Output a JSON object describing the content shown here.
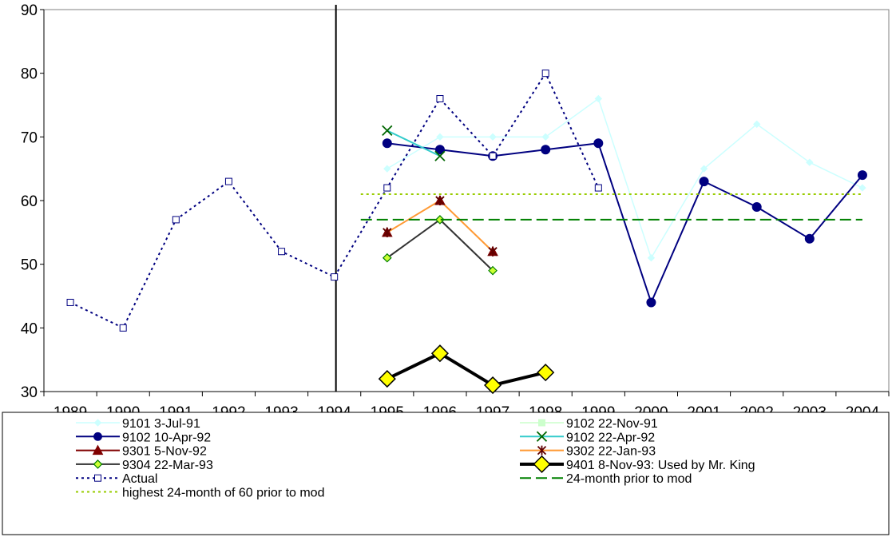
{
  "chart_data": {
    "type": "line",
    "title": "",
    "xlabel": "",
    "ylabel": "",
    "categories": [
      "1989",
      "1990",
      "1991",
      "1992",
      "1993",
      "1994",
      "1995",
      "1996",
      "1997",
      "1998",
      "1999",
      "2000",
      "2001",
      "2002",
      "2003",
      "2004"
    ],
    "ylim": [
      30,
      90
    ],
    "yticks": [
      30,
      40,
      50,
      60,
      70,
      80,
      90
    ],
    "grid": false,
    "legend_position": "bottom",
    "vertical_marker_after": "1994",
    "series": [
      {
        "name": "9101 3-Jul-91",
        "color": "#ccffff",
        "marker": "diamond",
        "dash": "solid",
        "width": "thin",
        "values": [
          null,
          null,
          null,
          null,
          null,
          null,
          65,
          70,
          70,
          70,
          76,
          51,
          65,
          72,
          66,
          62
        ]
      },
      {
        "name": "9102 22-Nov-91",
        "color": "#ccffcc",
        "marker": "square",
        "dash": "solid",
        "width": "thin",
        "values": [
          null,
          null,
          null,
          null,
          null,
          null,
          null,
          null,
          null,
          null,
          null,
          null,
          null,
          null,
          null,
          null
        ]
      },
      {
        "name": "9102 10-Apr-92",
        "color": "#000080",
        "marker": "circle",
        "dash": "solid",
        "width": "normal",
        "values": [
          null,
          null,
          null,
          null,
          null,
          null,
          69,
          68,
          67,
          68,
          69,
          44,
          63,
          59,
          54,
          64
        ]
      },
      {
        "name": "9102 22-Apr-92",
        "color": "#33cccc",
        "marker": "x",
        "dash": "solid",
        "width": "normal",
        "values": [
          null,
          null,
          null,
          null,
          null,
          null,
          71,
          67,
          null,
          null,
          null,
          null,
          null,
          null,
          null,
          null
        ]
      },
      {
        "name": "9301 5-Nov-92",
        "color": "#800000",
        "marker": "triangle",
        "dash": "solid",
        "width": "normal",
        "values": [
          null,
          null,
          null,
          null,
          null,
          null,
          null,
          null,
          null,
          null,
          null,
          null,
          null,
          null,
          null,
          null
        ]
      },
      {
        "name": "9302 22-Jan-93",
        "color": "#ff9933",
        "marker": "star",
        "dash": "solid",
        "width": "normal",
        "values": [
          null,
          null,
          null,
          null,
          null,
          null,
          55,
          60,
          52,
          null,
          null,
          null,
          null,
          null,
          null,
          null
        ]
      },
      {
        "name": "9304 22-Mar-93",
        "color": "#333333",
        "marker": "diamond-green",
        "dash": "solid",
        "width": "normal",
        "values": [
          null,
          null,
          null,
          null,
          null,
          null,
          51,
          57,
          49,
          null,
          null,
          null,
          null,
          null,
          null,
          null
        ]
      },
      {
        "name": "9401 8-Nov-93: Used by Mr. King",
        "color": "#000000",
        "marker": "diamond-yellow",
        "dash": "solid",
        "width": "thick",
        "values": [
          null,
          null,
          null,
          null,
          null,
          null,
          32,
          36,
          31,
          33,
          null,
          null,
          null,
          null,
          null,
          null
        ]
      },
      {
        "name": "Actual",
        "color": "#000080",
        "marker": "open-square",
        "dash": "dotted",
        "width": "normal",
        "values": [
          44,
          40,
          57,
          63,
          52,
          48,
          62,
          76,
          67,
          80,
          62,
          null,
          null,
          null,
          null,
          null
        ]
      },
      {
        "name": "24-month prior to mod",
        "color": "#008000",
        "marker": "none",
        "dash": "dashed",
        "width": "normal",
        "values": [
          null,
          null,
          null,
          null,
          null,
          null,
          57,
          57,
          57,
          57,
          57,
          57,
          57,
          57,
          57,
          57
        ]
      },
      {
        "name": "highest 24-month of 60 prior to mod",
        "color": "#99cc00",
        "marker": "none",
        "dash": "dotted",
        "width": "normal",
        "values": [
          null,
          null,
          null,
          null,
          null,
          null,
          61,
          61,
          61,
          61,
          61,
          61,
          61,
          61,
          61,
          61
        ]
      }
    ]
  }
}
